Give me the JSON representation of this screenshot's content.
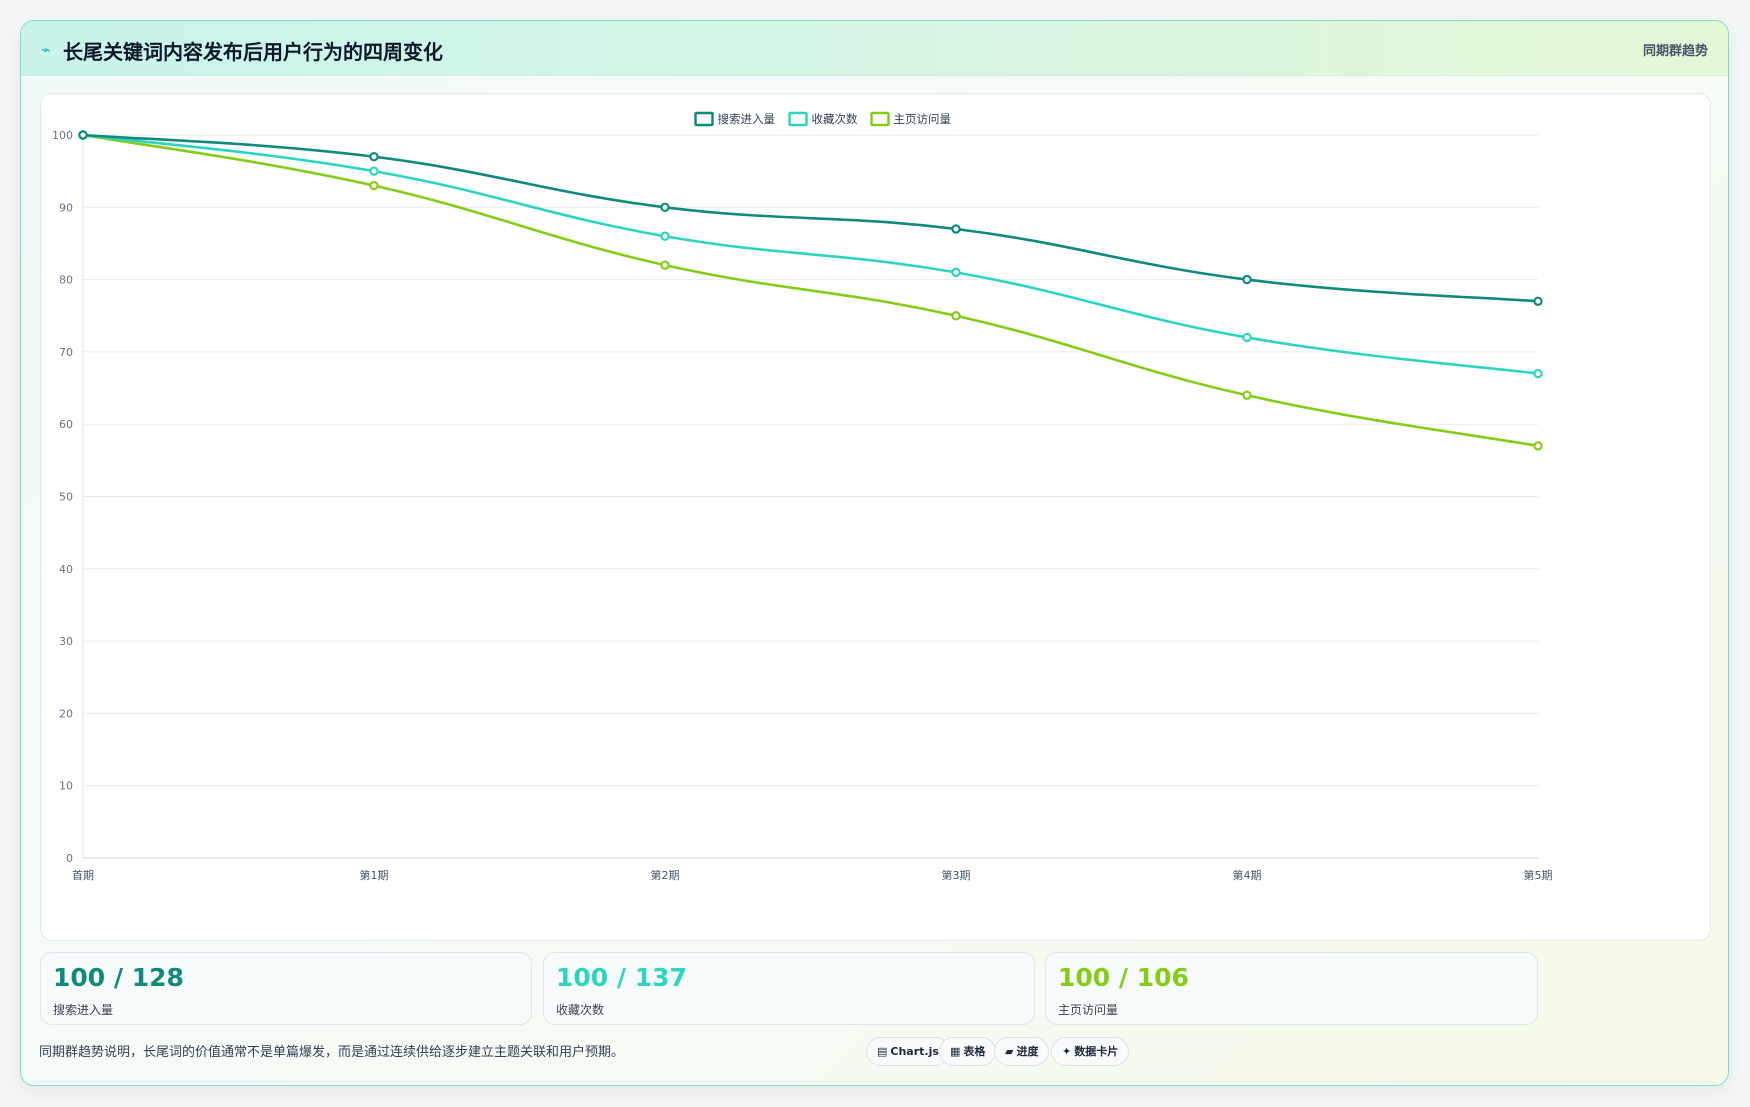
{
  "header": {
    "title": "长尾关键词内容发布后用户行为的四周变化",
    "tag": "同期群趋势"
  },
  "chart_data": {
    "type": "line",
    "categories": [
      "首期",
      "第1期",
      "第2期",
      "第3期",
      "第4期",
      "第5期"
    ],
    "series": [
      {
        "name": "搜索进入量",
        "color": "#0f8a7c",
        "values": [
          100,
          97,
          90,
          87,
          80,
          77
        ]
      },
      {
        "name": "收藏次数",
        "color": "#2dd4bf",
        "values": [
          100,
          95,
          86,
          81,
          72,
          67
        ]
      },
      {
        "name": "主页访问量",
        "color": "#84cc16",
        "values": [
          100,
          93,
          82,
          75,
          64,
          57
        ]
      }
    ],
    "yticks": [
      "0",
      "10",
      "20",
      "30",
      "40",
      "50",
      "60",
      "70",
      "80",
      "90",
      "100"
    ],
    "ylim": [
      0,
      100
    ],
    "grid": true,
    "legend": "top-center"
  },
  "kpis": [
    {
      "value": "100 / 128",
      "label": "搜索进入量",
      "color": "#0f8a7c"
    },
    {
      "value": "100 / 137",
      "label": "收藏次数",
      "color": "#2dd4bf"
    },
    {
      "value": "100 / 106",
      "label": "主页访问量",
      "color": "#84cc16"
    }
  ],
  "footer": {
    "note": "同期群趋势说明，长尾词的价值通常不是单篇爆发，而是通过连续供给逐步建立主题关联和用户预期。",
    "pills": [
      {
        "icon": "▤",
        "label": "Chart.js"
      },
      {
        "icon": "▦",
        "label": "表格"
      },
      {
        "icon": "▰",
        "label": "进度"
      },
      {
        "icon": "✦",
        "label": "数据卡片"
      }
    ]
  }
}
